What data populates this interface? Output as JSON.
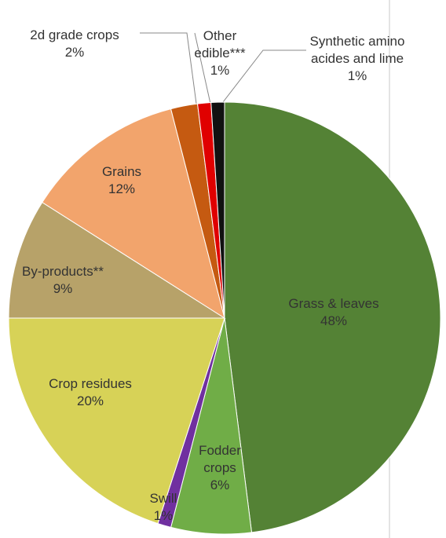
{
  "chart_data": {
    "type": "pie",
    "categories": [
      "Grass & leaves",
      "Fodder crops",
      "Swill",
      "Crop residues",
      "By-products**",
      "Grains",
      "2d grade crops",
      "Other edible***",
      "Synthetic amino acides and lime"
    ],
    "values": [
      48,
      6,
      1,
      20,
      9,
      12,
      2,
      1,
      1
    ],
    "value_labels": [
      "48%",
      "6%",
      "1%",
      "20%",
      "9%",
      "12%",
      "2%",
      "1%",
      "1%"
    ],
    "colors": [
      "#548235",
      "#70ad47",
      "#7030a0",
      "#d7d257",
      "#b7a269",
      "#f2a46c",
      "#c55a11",
      "#e00000",
      "#111111"
    ]
  }
}
